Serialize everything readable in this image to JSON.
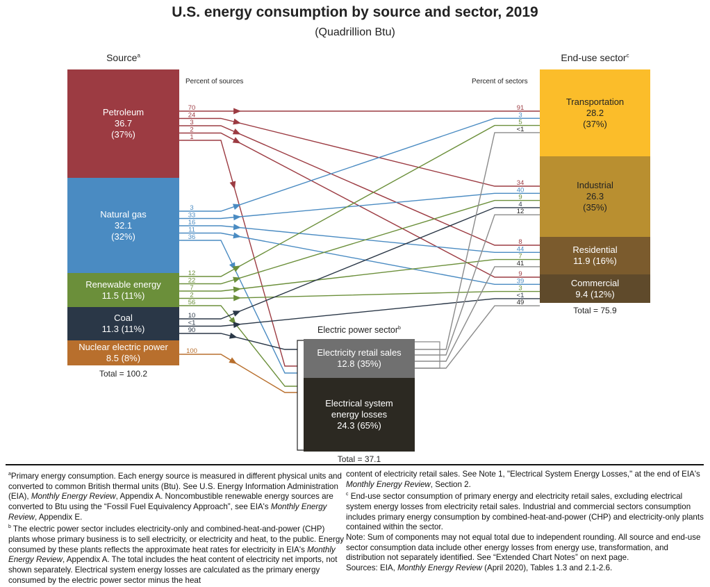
{
  "title": "U.S. energy consumption by source and sector, 2019",
  "subtitle": "(Quadrillion Btu)",
  "source_header": "Source",
  "source_header_sup": "a",
  "sector_header": "End-use sector",
  "sector_header_sup": "c",
  "percent_of_sources": "Percent of sources",
  "percent_of_sectors": "Percent of sectors",
  "colors": {
    "petroleum": "#9c3b42",
    "natural_gas": "#4a8bc2",
    "renewable": "#6b8f3a",
    "coal": "#2a3747",
    "nuclear": "#b86f2d",
    "transportation": "#fbbd2a",
    "industrial": "#b98f30",
    "residential": "#7b5b2d",
    "commercial": "#5f4a2b",
    "retail": "#707070",
    "losses": "#2c2922",
    "retail_flow": "#8a8a8a"
  },
  "sources": [
    {
      "key": "petroleum",
      "name": "Petroleum",
      "value": "36.7",
      "pct": "(37%)"
    },
    {
      "key": "natural_gas",
      "name": "Natural gas",
      "value": "32.1",
      "pct": "(32%)"
    },
    {
      "key": "renewable",
      "name": "Renewable energy",
      "value": "11.5 (11%)"
    },
    {
      "key": "coal",
      "name": "Coal",
      "value": "11.3 (11%)"
    },
    {
      "key": "nuclear",
      "name": "Nuclear electric power",
      "value": "8.5 (8%)"
    }
  ],
  "source_total": "Total = 100.2",
  "sectors": [
    {
      "key": "transportation",
      "name": "Transportation",
      "value": "28.2",
      "pct": "(37%)"
    },
    {
      "key": "industrial",
      "name": "Industrial",
      "value": "26.3",
      "pct": "(35%)"
    },
    {
      "key": "residential",
      "name": "Residential",
      "value": "11.9 (16%)"
    },
    {
      "key": "commercial",
      "name": "Commercial",
      "value": "9.4 (12%)"
    }
  ],
  "sector_total": "Total = 75.9",
  "electric": {
    "header": "Electric power sector",
    "header_sup": "b",
    "retail_name": "Electricity retail sales",
    "retail_value": "12.8 (35%)",
    "losses_name_1": "Electrical system",
    "losses_name_2": "energy losses",
    "losses_value": "24.3 (65%)",
    "total": "Total = 37.1"
  },
  "flows": [
    {
      "from": "petroleum",
      "to": "transportation",
      "source_pct": "70",
      "sector_pct": "91"
    },
    {
      "from": "petroleum",
      "to": "industrial",
      "source_pct": "24",
      "sector_pct": "34"
    },
    {
      "from": "petroleum",
      "to": "residential",
      "source_pct": "3",
      "sector_pct": "8"
    },
    {
      "from": "petroleum",
      "to": "commercial",
      "source_pct": "2",
      "sector_pct": "9"
    },
    {
      "from": "petroleum",
      "to": "electric",
      "source_pct": "1"
    },
    {
      "from": "natural_gas",
      "to": "transportation",
      "source_pct": "3",
      "sector_pct": "3"
    },
    {
      "from": "natural_gas",
      "to": "industrial",
      "source_pct": "33",
      "sector_pct": "40"
    },
    {
      "from": "natural_gas",
      "to": "residential",
      "source_pct": "16",
      "sector_pct": "44"
    },
    {
      "from": "natural_gas",
      "to": "commercial",
      "source_pct": "11",
      "sector_pct": "39"
    },
    {
      "from": "natural_gas",
      "to": "electric",
      "source_pct": "36"
    },
    {
      "from": "renewable",
      "to": "transportation",
      "source_pct": "12",
      "sector_pct": "5"
    },
    {
      "from": "renewable",
      "to": "industrial",
      "source_pct": "22",
      "sector_pct": "9"
    },
    {
      "from": "renewable",
      "to": "residential",
      "source_pct": "7",
      "sector_pct": "7"
    },
    {
      "from": "renewable",
      "to": "commercial",
      "source_pct": "2",
      "sector_pct": "3"
    },
    {
      "from": "renewable",
      "to": "electric",
      "source_pct": "56"
    },
    {
      "from": "coal",
      "to": "industrial",
      "source_pct": "10",
      "sector_pct": "4"
    },
    {
      "from": "coal",
      "to": "commercial",
      "source_pct": "<1",
      "sector_pct": "<1"
    },
    {
      "from": "coal",
      "to": "electric",
      "source_pct": "90"
    },
    {
      "from": "nuclear",
      "to": "electric",
      "source_pct": "100"
    },
    {
      "from": "retail",
      "to": "transportation",
      "sector_pct": "<1"
    },
    {
      "from": "retail",
      "to": "industrial",
      "sector_pct": "12"
    },
    {
      "from": "retail",
      "to": "residential",
      "sector_pct": "41"
    },
    {
      "from": "retail",
      "to": "commercial",
      "sector_pct": "49"
    }
  ],
  "footnotes": {
    "col1": [
      [
        {
          "t": "a",
          "sup": true
        },
        {
          "t": "Primary energy consumption. Each energy source is measured in different physical units and converted to common British thermal units (Btu). See U.S. Energy Information Administration (EIA), "
        },
        {
          "t": "Monthly Energy Review",
          "i": true
        },
        {
          "t": ", Appendix A. Noncombustible renewable energy sources are converted to Btu using the “Fossil Fuel Equivalency Approach”, see EIA's "
        },
        {
          "t": "Monthly Energy Review",
          "i": true
        },
        {
          "t": ", Appendix E."
        }
      ],
      [
        {
          "t": "b",
          "sup": true
        },
        {
          "t": " The electric power sector includes electricity-only and combined-heat-and-power (CHP) plants whose primary business is to sell electricity, or electricity and heat, to the public. Energy consumed by these plants reflects the approximate heat rates for electricity in EIA's "
        },
        {
          "t": "Monthly Energy Review",
          "i": true
        },
        {
          "t": ", Appendix A. The total includes the heat content of electricity net imports, not shown separately. Electrical system energy losses are calculated as the primary energy consumed by the electric power sector minus the heat"
        }
      ]
    ],
    "col2": [
      [
        {
          "t": "content of electricity retail sales. See Note 1, \"Electrical System Energy Losses,\" at the end of EIA's "
        },
        {
          "t": "Monthly Energy Review",
          "i": true
        },
        {
          "t": ", Section 2."
        }
      ],
      [
        {
          "t": "c",
          "sup": true
        },
        {
          "t": " End-use sector consumption of primary energy and electricity retail sales, excluding electrical system energy losses from electricity retail sales. Industrial and commercial sectors consumption includes primary energy consumption by combined-heat-and-power (CHP) and electricity-only plants contained within the sector."
        }
      ],
      [
        {
          "t": "Note: Sum of components may not equal total due to independent rounding. All source and end-use sector consumption data include other energy losses from energy use, transformation, and distribution not separately identified. See “Extended Chart Notes” on next page."
        }
      ],
      [
        {
          "t": "Sources: EIA, "
        },
        {
          "t": "Monthly Energy Review",
          "i": true
        },
        {
          "t": " (April 2020), Tables 1.3 and 2.1-2.6."
        }
      ]
    ]
  }
}
